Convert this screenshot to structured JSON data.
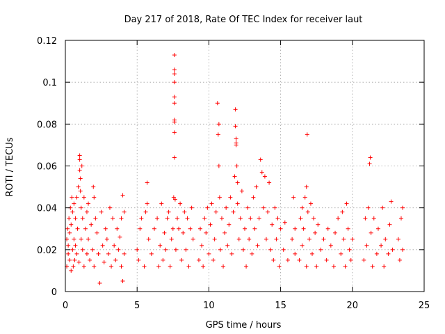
{
  "chart_data": {
    "type": "scatter",
    "title": "Day 217 of 2018, Rate Of TEC Index for receiver laut",
    "xlabel": "GPS time / hours",
    "ylabel": "ROTI / TECUs",
    "xlim": [
      0,
      25
    ],
    "ylim": [
      0,
      0.12
    ],
    "xticks": [
      0,
      5,
      10,
      15,
      20,
      25
    ],
    "yticks": [
      0,
      0.02,
      0.04,
      0.06,
      0.08,
      0.1,
      0.12
    ],
    "xtick_labels": [
      "0",
      "5",
      "10",
      "15",
      "20",
      "25"
    ],
    "ytick_labels": [
      "0",
      "0.02",
      "0.04",
      "0.06",
      "0.08",
      "0.1",
      "0.12"
    ],
    "grid": true,
    "marker": "+",
    "color": "#ff0000",
    "series": [
      {
        "name": "ROTI",
        "points": [
          [
            0.1,
            0.012
          ],
          [
            0.1,
            0.025
          ],
          [
            0.15,
            0.03
          ],
          [
            0.2,
            0.018
          ],
          [
            0.2,
            0.022
          ],
          [
            0.25,
            0.035
          ],
          [
            0.3,
            0.015
          ],
          [
            0.3,
            0.028
          ],
          [
            0.35,
            0.04
          ],
          [
            0.4,
            0.01
          ],
          [
            0.4,
            0.032
          ],
          [
            0.45,
            0.045
          ],
          [
            0.5,
            0.02
          ],
          [
            0.5,
            0.038
          ],
          [
            0.55,
            0.012
          ],
          [
            0.6,
            0.042
          ],
          [
            0.6,
            0.025
          ],
          [
            0.65,
            0.015
          ],
          [
            0.7,
            0.035
          ],
          [
            0.7,
            0.022
          ],
          [
            0.8,
            0.045
          ],
          [
            0.8,
            0.018
          ],
          [
            0.85,
            0.03
          ],
          [
            0.9,
            0.05
          ],
          [
            0.95,
            0.014
          ],
          [
            1.0,
            0.065
          ],
          [
            1.0,
            0.063
          ],
          [
            1.0,
            0.058
          ],
          [
            1.05,
            0.054
          ],
          [
            1.05,
            0.048
          ],
          [
            1.1,
            0.04
          ],
          [
            1.1,
            0.025
          ],
          [
            1.15,
            0.06
          ],
          [
            1.2,
            0.035
          ],
          [
            1.2,
            0.02
          ],
          [
            1.3,
            0.045
          ],
          [
            1.3,
            0.012
          ],
          [
            1.4,
            0.03
          ],
          [
            1.5,
            0.038
          ],
          [
            1.5,
            0.018
          ],
          [
            1.6,
            0.042
          ],
          [
            1.6,
            0.025
          ],
          [
            1.7,
            0.015
          ],
          [
            1.8,
            0.032
          ],
          [
            1.9,
            0.02
          ],
          [
            1.95,
            0.05
          ],
          [
            2.0,
            0.045
          ],
          [
            2.0,
            0.012
          ],
          [
            2.1,
            0.035
          ],
          [
            2.2,
            0.028
          ],
          [
            2.3,
            0.018
          ],
          [
            2.4,
            0.004
          ],
          [
            2.5,
            0.038
          ],
          [
            2.6,
            0.022
          ],
          [
            2.7,
            0.014
          ],
          [
            2.8,
            0.03
          ],
          [
            2.9,
            0.025
          ],
          [
            3.0,
            0.018
          ],
          [
            3.1,
            0.04
          ],
          [
            3.2,
            0.012
          ],
          [
            3.3,
            0.035
          ],
          [
            3.4,
            0.022
          ],
          [
            3.5,
            0.015
          ],
          [
            3.6,
            0.03
          ],
          [
            3.7,
            0.02
          ],
          [
            3.8,
            0.026
          ],
          [
            3.9,
            0.035
          ],
          [
            3.9,
            0.012
          ],
          [
            4.0,
            0.046
          ],
          [
            4.0,
            0.005
          ],
          [
            4.1,
            0.038
          ],
          [
            4.1,
            0.018
          ],
          [
            5.0,
            0.02
          ],
          [
            5.1,
            0.015
          ],
          [
            5.2,
            0.03
          ],
          [
            5.3,
            0.035
          ],
          [
            5.5,
            0.012
          ],
          [
            5.6,
            0.038
          ],
          [
            5.7,
            0.052
          ],
          [
            5.7,
            0.042
          ],
          [
            5.8,
            0.025
          ],
          [
            6.0,
            0.018
          ],
          [
            6.2,
            0.03
          ],
          [
            6.4,
            0.035
          ],
          [
            6.5,
            0.012
          ],
          [
            6.6,
            0.022
          ],
          [
            6.7,
            0.042
          ],
          [
            6.8,
            0.015
          ],
          [
            6.9,
            0.028
          ],
          [
            7.0,
            0.02
          ],
          [
            7.1,
            0.035
          ],
          [
            7.2,
            0.038
          ],
          [
            7.3,
            0.012
          ],
          [
            7.4,
            0.025
          ],
          [
            7.5,
            0.03
          ],
          [
            7.55,
            0.045
          ],
          [
            7.6,
            0.113
          ],
          [
            7.6,
            0.106
          ],
          [
            7.6,
            0.104
          ],
          [
            7.6,
            0.1
          ],
          [
            7.6,
            0.093
          ],
          [
            7.6,
            0.09
          ],
          [
            7.6,
            0.082
          ],
          [
            7.6,
            0.081
          ],
          [
            7.6,
            0.076
          ],
          [
            7.6,
            0.064
          ],
          [
            7.65,
            0.044
          ],
          [
            7.7,
            0.02
          ],
          [
            7.8,
            0.035
          ],
          [
            7.9,
            0.03
          ],
          [
            8.0,
            0.042
          ],
          [
            8.1,
            0.015
          ],
          [
            8.2,
            0.028
          ],
          [
            8.3,
            0.038
          ],
          [
            8.4,
            0.02
          ],
          [
            8.5,
            0.035
          ],
          [
            8.6,
            0.012
          ],
          [
            8.7,
            0.03
          ],
          [
            8.8,
            0.04
          ],
          [
            8.9,
            0.025
          ],
          [
            9.3,
            0.015
          ],
          [
            9.4,
            0.03
          ],
          [
            9.5,
            0.022
          ],
          [
            9.6,
            0.012
          ],
          [
            9.7,
            0.035
          ],
          [
            9.8,
            0.028
          ],
          [
            9.9,
            0.04
          ],
          [
            10.0,
            0.018
          ],
          [
            10.1,
            0.032
          ],
          [
            10.2,
            0.042
          ],
          [
            10.3,
            0.015
          ],
          [
            10.4,
            0.025
          ],
          [
            10.5,
            0.038
          ],
          [
            10.6,
            0.09
          ],
          [
            10.65,
            0.075
          ],
          [
            10.7,
            0.08
          ],
          [
            10.7,
            0.06
          ],
          [
            10.75,
            0.045
          ],
          [
            10.8,
            0.02
          ],
          [
            10.9,
            0.035
          ],
          [
            11.0,
            0.012
          ],
          [
            11.1,
            0.028
          ],
          [
            11.2,
            0.04
          ],
          [
            11.3,
            0.022
          ],
          [
            11.4,
            0.032
          ],
          [
            11.5,
            0.045
          ],
          [
            11.6,
            0.018
          ],
          [
            11.7,
            0.038
          ],
          [
            11.8,
            0.055
          ],
          [
            11.85,
            0.087
          ],
          [
            11.85,
            0.079
          ],
          [
            11.9,
            0.071
          ],
          [
            11.9,
            0.07
          ],
          [
            11.9,
            0.073
          ],
          [
            11.95,
            0.06
          ],
          [
            12.0,
            0.052
          ],
          [
            12.0,
            0.042
          ],
          [
            12.1,
            0.025
          ],
          [
            12.2,
            0.035
          ],
          [
            12.3,
            0.048
          ],
          [
            12.4,
            0.02
          ],
          [
            12.5,
            0.03
          ],
          [
            12.6,
            0.012
          ],
          [
            12.7,
            0.04
          ],
          [
            12.8,
            0.025
          ],
          [
            12.9,
            0.035
          ],
          [
            13.0,
            0.018
          ],
          [
            13.1,
            0.045
          ],
          [
            13.2,
            0.03
          ],
          [
            13.3,
            0.05
          ],
          [
            13.4,
            0.022
          ],
          [
            13.5,
            0.035
          ],
          [
            13.6,
            0.063
          ],
          [
            13.7,
            0.057
          ],
          [
            13.8,
            0.04
          ],
          [
            13.9,
            0.055
          ],
          [
            14.0,
            0.025
          ],
          [
            14.1,
            0.038
          ],
          [
            14.2,
            0.052
          ],
          [
            14.3,
            0.02
          ],
          [
            14.4,
            0.032
          ],
          [
            14.5,
            0.015
          ],
          [
            14.6,
            0.04
          ],
          [
            14.7,
            0.025
          ],
          [
            14.8,
            0.035
          ],
          [
            14.9,
            0.012
          ],
          [
            15.0,
            0.03
          ],
          [
            15.2,
            0.02
          ],
          [
            15.3,
            0.033
          ],
          [
            15.5,
            0.015
          ],
          [
            15.8,
            0.025
          ],
          [
            15.9,
            0.045
          ],
          [
            16.0,
            0.018
          ],
          [
            16.0,
            0.03
          ],
          [
            16.3,
            0.015
          ],
          [
            16.4,
            0.035
          ],
          [
            16.5,
            0.04
          ],
          [
            16.5,
            0.022
          ],
          [
            16.6,
            0.03
          ],
          [
            16.7,
            0.045
          ],
          [
            16.8,
            0.05
          ],
          [
            16.8,
            0.012
          ],
          [
            16.85,
            0.075
          ],
          [
            16.9,
            0.038
          ],
          [
            17.0,
            0.025
          ],
          [
            17.1,
            0.042
          ],
          [
            17.2,
            0.018
          ],
          [
            17.3,
            0.035
          ],
          [
            17.4,
            0.028
          ],
          [
            17.5,
            0.012
          ],
          [
            17.6,
            0.032
          ],
          [
            17.8,
            0.02
          ],
          [
            18.0,
            0.025
          ],
          [
            18.2,
            0.015
          ],
          [
            18.3,
            0.03
          ],
          [
            18.5,
            0.022
          ],
          [
            18.7,
            0.012
          ],
          [
            18.8,
            0.028
          ],
          [
            19.0,
            0.035
          ],
          [
            19.2,
            0.018
          ],
          [
            19.3,
            0.038
          ],
          [
            19.4,
            0.025
          ],
          [
            19.5,
            0.012
          ],
          [
            19.6,
            0.042
          ],
          [
            19.7,
            0.03
          ],
          [
            19.8,
            0.02
          ],
          [
            19.9,
            0.015
          ],
          [
            20.0,
            0.025
          ],
          [
            20.8,
            0.015
          ],
          [
            20.9,
            0.035
          ],
          [
            21.0,
            0.022
          ],
          [
            21.1,
            0.04
          ],
          [
            21.2,
            0.061
          ],
          [
            21.25,
            0.064
          ],
          [
            21.3,
            0.028
          ],
          [
            21.4,
            0.012
          ],
          [
            21.5,
            0.035
          ],
          [
            21.7,
            0.018
          ],
          [
            21.8,
            0.03
          ],
          [
            22.0,
            0.022
          ],
          [
            22.1,
            0.04
          ],
          [
            22.2,
            0.012
          ],
          [
            22.3,
            0.025
          ],
          [
            22.5,
            0.018
          ],
          [
            22.6,
            0.032
          ],
          [
            22.7,
            0.043
          ],
          [
            22.8,
            0.02
          ],
          [
            23.2,
            0.025
          ],
          [
            23.3,
            0.015
          ],
          [
            23.4,
            0.035
          ],
          [
            23.5,
            0.04
          ],
          [
            23.5,
            0.02
          ]
        ]
      }
    ]
  }
}
